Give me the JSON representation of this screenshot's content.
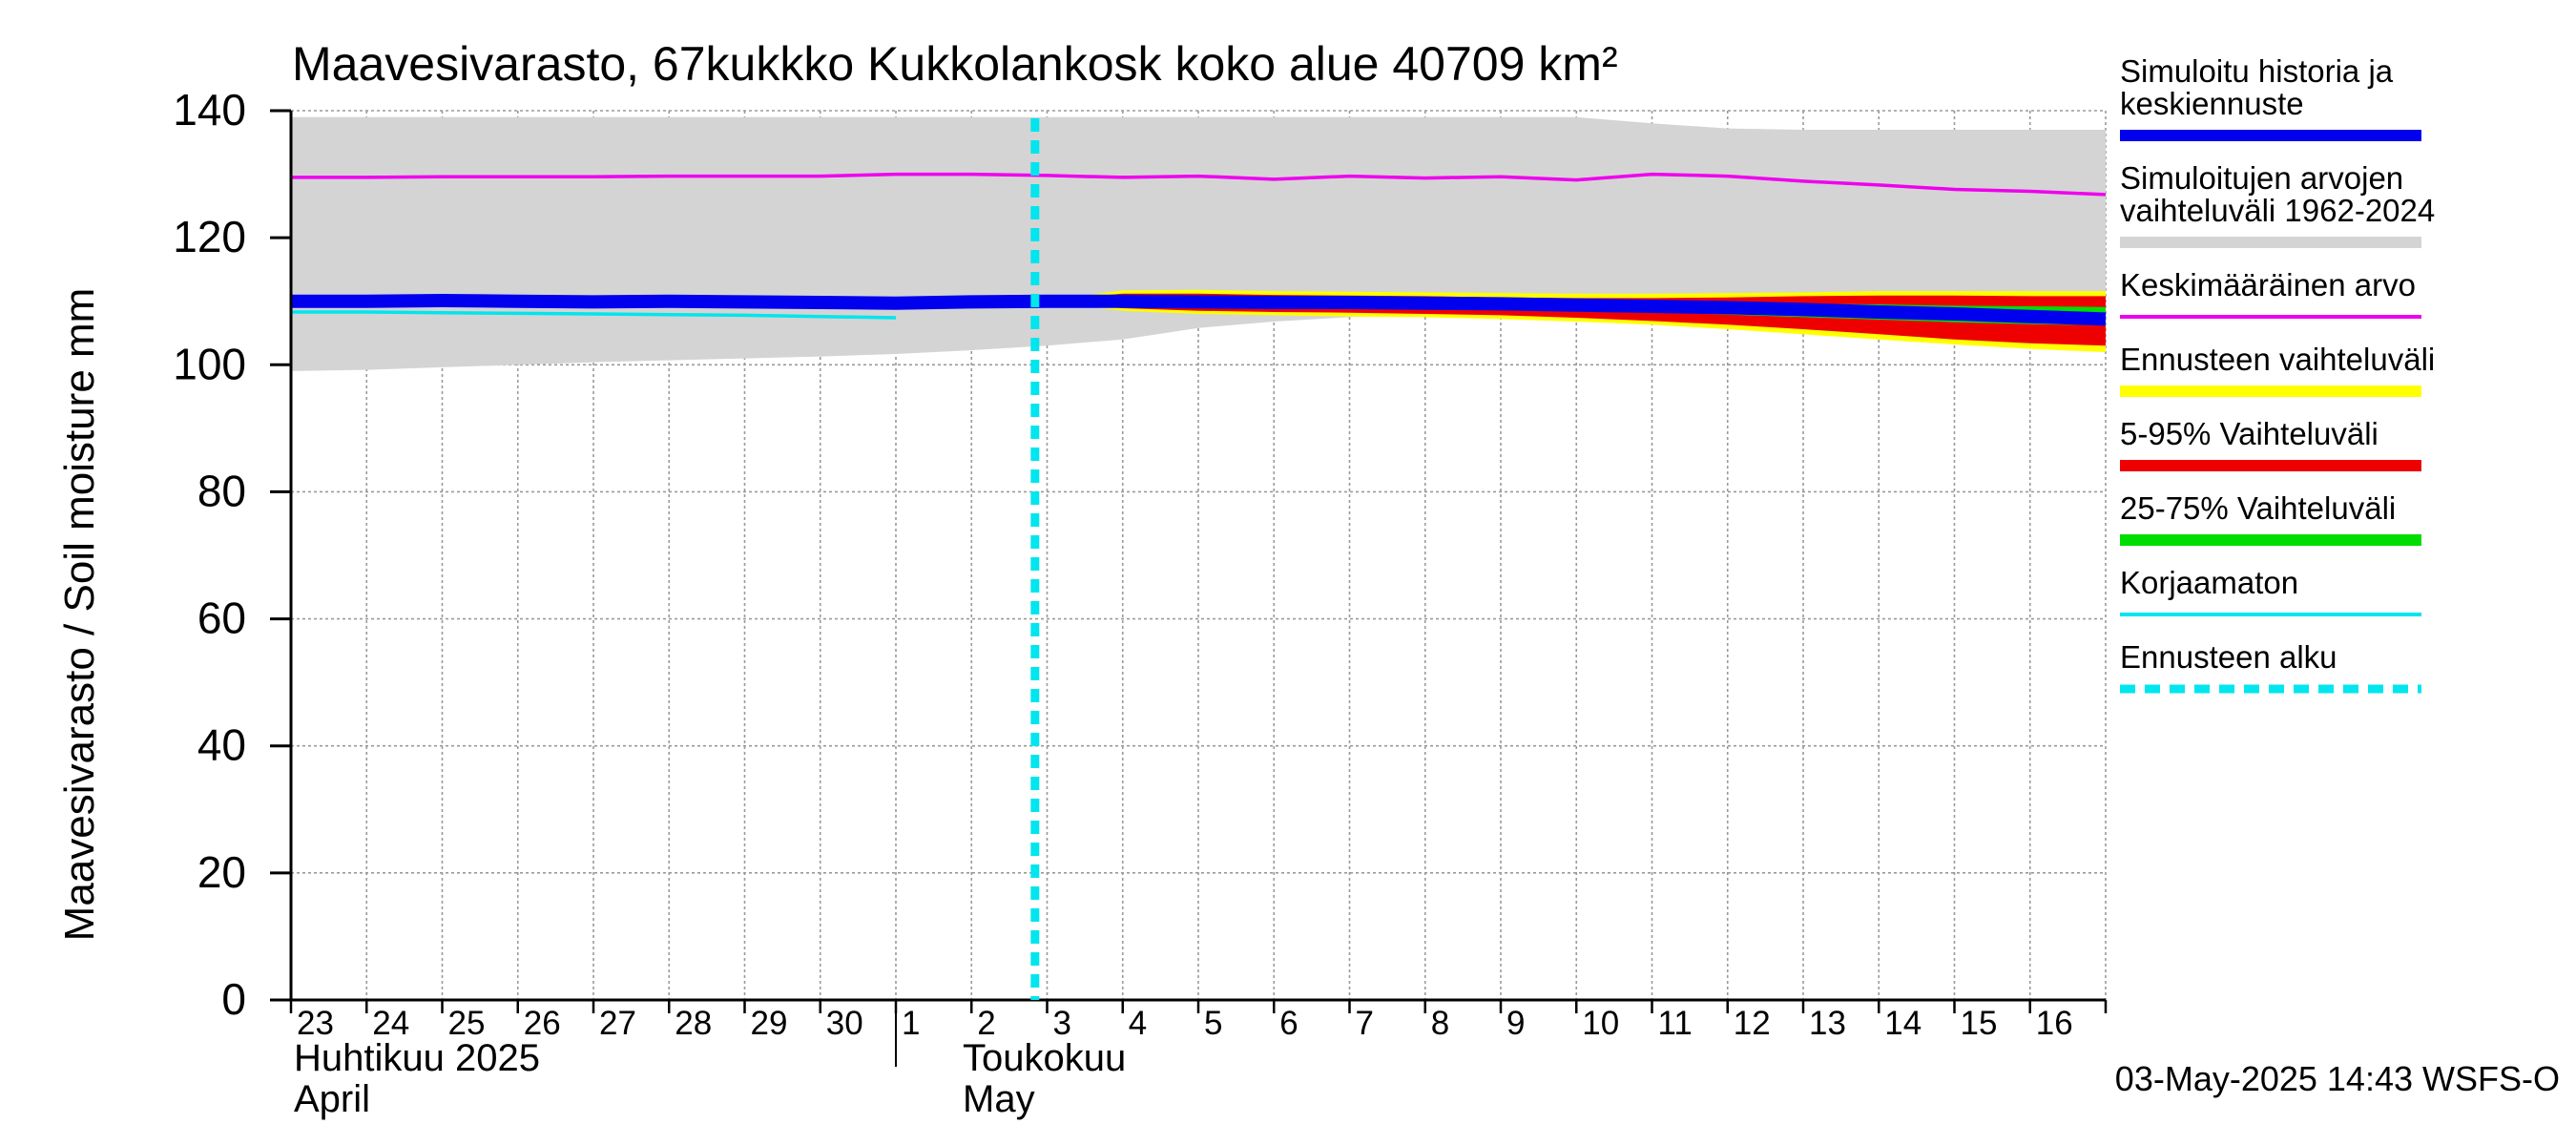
{
  "chart_data": {
    "type": "area",
    "title": "Maavesivarasto, 67kukkko Kukkolankosk koko alue 40709 km²",
    "ylabel": "Maavesivarasto / Soil moisture   mm",
    "ylim": [
      0,
      140
    ],
    "y_ticks": [
      "0",
      "20",
      "40",
      "60",
      "80",
      "100",
      "120",
      "140"
    ],
    "x_range": [
      "2025-04-23",
      "2025-05-16"
    ],
    "x_tick_labels": [
      "23",
      "24",
      "25",
      "26",
      "27",
      "28",
      "29",
      "30",
      "1",
      "2",
      "3",
      "4",
      "5",
      "6",
      "7",
      "8",
      "9",
      "10",
      "11",
      "12",
      "13",
      "14",
      "15",
      "16"
    ],
    "month_labels": [
      {
        "fi": "Huhtikuu  2025",
        "en": "April"
      },
      {
        "fi": "Toukokuu",
        "en": "May"
      }
    ],
    "grid": true,
    "legend_position": "right",
    "forecast_start": "2025-05-03",
    "timestamp": "03-May-2025 14:43 WSFS-O",
    "colors": {
      "history": "#0000ee",
      "range_hist": "#d4d4d4",
      "mean": "#ee00ee",
      "forecast_range": "#ffff00",
      "p5_95": "#ee0000",
      "p25_75": "#00dd00",
      "uncorrected": "#00e5ee",
      "forecast_start": "#00e5ee"
    },
    "legend": [
      {
        "label": "Simuloitu historia ja keskiennuste",
        "lines": [
          "Simuloitu historia ja",
          "keskiennuste"
        ],
        "color": "#0000ee",
        "style": "solid"
      },
      {
        "label": "Simuloitujen arvojen vaihteluväli 1962-2024",
        "lines": [
          "Simuloitujen arvojen",
          "vaihteluväli 1962-2024"
        ],
        "color": "#d4d4d4",
        "style": "solid"
      },
      {
        "label": "Keskimääräinen arvo",
        "lines": [
          "Keskimääräinen arvo"
        ],
        "color": "#ee00ee",
        "style": "thin"
      },
      {
        "label": "Ennusteen vaihteluväli",
        "lines": [
          "Ennusteen vaihteluväli"
        ],
        "color": "#ffff00",
        "style": "solid"
      },
      {
        "label": "5-95% Vaihteluväli",
        "lines": [
          "5-95% Vaihteluväli"
        ],
        "color": "#ee0000",
        "style": "solid"
      },
      {
        "label": "25-75% Vaihteluväli",
        "lines": [
          "25-75% Vaihteluväli"
        ],
        "color": "#00dd00",
        "style": "solid"
      },
      {
        "label": "Korjaamaton",
        "lines": [
          "Korjaamaton"
        ],
        "color": "#00e5ee",
        "style": "thin"
      },
      {
        "label": "Ennusteen alku",
        "lines": [
          "Ennusteen alku"
        ],
        "color": "#00e5ee",
        "style": "dashed"
      }
    ],
    "series": [
      {
        "name": "Simuloitujen arvojen vaihteluväli 1962-2024",
        "type": "band",
        "x": [
          "2025-04-23",
          "2025-04-24",
          "2025-04-25",
          "2025-04-26",
          "2025-04-27",
          "2025-04-28",
          "2025-04-29",
          "2025-04-30",
          "2025-05-01",
          "2025-05-02",
          "2025-05-03",
          "2025-05-04",
          "2025-05-05",
          "2025-05-06",
          "2025-05-07",
          "2025-05-08",
          "2025-05-09",
          "2025-05-10",
          "2025-05-11",
          "2025-05-12",
          "2025-05-13",
          "2025-05-14",
          "2025-05-15",
          "2025-05-16",
          "2025-05-17"
        ],
        "low": [
          99.0,
          99.2,
          99.6,
          100.0,
          100.4,
          100.7,
          101.0,
          101.3,
          101.7,
          102.3,
          103.0,
          104.0,
          105.8,
          106.8,
          107.5,
          108.3,
          108.8,
          109.2,
          109.5,
          109.5,
          109.5,
          109.5,
          109.5,
          109.5,
          109.5
        ],
        "high": [
          139.0,
          139.0,
          139.0,
          139.0,
          139.0,
          139.0,
          139.0,
          139.0,
          139.0,
          139.0,
          139.0,
          139.0,
          139.0,
          139.0,
          139.0,
          139.0,
          139.0,
          139.0,
          138.0,
          137.2,
          137.0,
          137.0,
          137.0,
          137.0,
          137.0
        ]
      },
      {
        "name": "Ennusteen vaihteluväli",
        "type": "band",
        "x": [
          "2025-05-03",
          "2025-05-04",
          "2025-05-05",
          "2025-05-06",
          "2025-05-07",
          "2025-05-08",
          "2025-05-09",
          "2025-05-10",
          "2025-05-11",
          "2025-05-12",
          "2025-05-13",
          "2025-05-14",
          "2025-05-15",
          "2025-05-16",
          "2025-05-17"
        ],
        "low": [
          110.0,
          108.5,
          108.0,
          107.8,
          107.6,
          107.5,
          107.2,
          106.8,
          106.3,
          105.6,
          104.8,
          104.0,
          103.2,
          102.5,
          102.0
        ],
        "high": [
          110.2,
          111.7,
          111.8,
          111.6,
          111.5,
          111.4,
          111.3,
          111.2,
          111.2,
          111.3,
          111.4,
          111.6,
          111.6,
          111.6,
          111.6
        ]
      },
      {
        "name": "5-95% Vaihteluväli",
        "type": "band",
        "x": [
          "2025-05-03",
          "2025-05-04",
          "2025-05-05",
          "2025-05-06",
          "2025-05-07",
          "2025-05-08",
          "2025-05-09",
          "2025-05-10",
          "2025-05-11",
          "2025-05-12",
          "2025-05-13",
          "2025-05-14",
          "2025-05-15",
          "2025-05-16",
          "2025-05-17"
        ],
        "low": [
          109.9,
          108.9,
          108.5,
          108.3,
          108.2,
          108.0,
          107.8,
          107.4,
          106.9,
          106.3,
          105.6,
          104.8,
          104.0,
          103.4,
          103.0
        ],
        "high": [
          110.1,
          111.2,
          111.2,
          111.0,
          110.9,
          110.8,
          110.6,
          110.5,
          110.5,
          110.6,
          110.8,
          110.9,
          110.9,
          110.8,
          110.8
        ]
      },
      {
        "name": "25-75% Vaihteluväli",
        "type": "band",
        "x": [
          "2025-05-03",
          "2025-05-04",
          "2025-05-05",
          "2025-05-06",
          "2025-05-07",
          "2025-05-08",
          "2025-05-09",
          "2025-05-10",
          "2025-05-11",
          "2025-05-12",
          "2025-05-13",
          "2025-05-14",
          "2025-05-15",
          "2025-05-16",
          "2025-05-17"
        ],
        "low": [
          110.0,
          109.6,
          109.4,
          109.3,
          109.2,
          109.1,
          108.9,
          108.6,
          108.3,
          107.9,
          107.5,
          107.1,
          106.7,
          106.4,
          106.2
        ],
        "high": [
          110.0,
          110.5,
          110.4,
          110.3,
          110.2,
          110.1,
          110.0,
          109.9,
          109.8,
          109.7,
          109.6,
          109.5,
          109.3,
          109.2,
          109.1
        ]
      },
      {
        "name": "Keskimääräinen arvo",
        "type": "line",
        "x": [
          "2025-04-23",
          "2025-04-24",
          "2025-04-25",
          "2025-04-26",
          "2025-04-27",
          "2025-04-28",
          "2025-04-29",
          "2025-04-30",
          "2025-05-01",
          "2025-05-02",
          "2025-05-03",
          "2025-05-04",
          "2025-05-05",
          "2025-05-06",
          "2025-05-07",
          "2025-05-08",
          "2025-05-09",
          "2025-05-10",
          "2025-05-11",
          "2025-05-12",
          "2025-05-13",
          "2025-05-14",
          "2025-05-15",
          "2025-05-16",
          "2025-05-17"
        ],
        "y": [
          129.5,
          129.5,
          129.6,
          129.6,
          129.6,
          129.7,
          129.7,
          129.7,
          130.0,
          130.0,
          129.8,
          129.5,
          129.7,
          129.2,
          129.7,
          129.4,
          129.6,
          129.1,
          130.0,
          129.7,
          128.9,
          128.3,
          127.6,
          127.3,
          126.8
        ]
      },
      {
        "name": "Korjaamaton",
        "type": "line",
        "x": [
          "2025-04-23",
          "2025-04-24",
          "2025-04-25",
          "2025-04-26",
          "2025-04-27",
          "2025-04-28",
          "2025-04-29",
          "2025-04-30",
          "2025-05-01"
        ],
        "y": [
          108.3,
          108.3,
          108.2,
          108.1,
          108.0,
          107.9,
          107.8,
          107.6,
          107.4
        ]
      },
      {
        "name": "Simuloitu historia ja keskiennuste",
        "type": "line",
        "x": [
          "2025-04-23",
          "2025-04-24",
          "2025-04-25",
          "2025-04-26",
          "2025-04-27",
          "2025-04-28",
          "2025-04-29",
          "2025-04-30",
          "2025-05-01",
          "2025-05-02",
          "2025-05-03",
          "2025-05-04",
          "2025-05-05",
          "2025-05-06",
          "2025-05-07",
          "2025-05-08",
          "2025-05-09",
          "2025-05-10",
          "2025-05-11",
          "2025-05-12",
          "2025-05-13",
          "2025-05-14",
          "2025-05-15",
          "2025-05-16",
          "2025-05-17"
        ],
        "y": [
          110.0,
          110.0,
          110.1,
          110.0,
          109.9,
          110.0,
          109.9,
          109.8,
          109.7,
          109.9,
          110.0,
          110.0,
          109.9,
          109.8,
          109.8,
          109.7,
          109.6,
          109.4,
          109.2,
          109.0,
          108.7,
          108.3,
          108.0,
          107.6,
          107.2
        ]
      }
    ]
  }
}
